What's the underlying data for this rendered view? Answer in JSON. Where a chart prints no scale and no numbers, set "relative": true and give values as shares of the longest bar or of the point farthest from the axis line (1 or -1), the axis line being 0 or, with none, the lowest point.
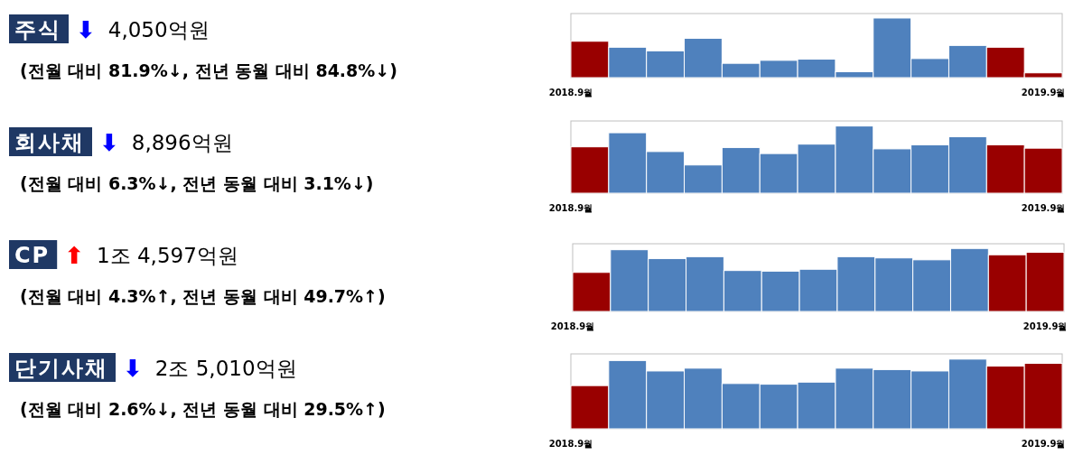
{
  "chart_data": [
    {
      "type": "other",
      "title": "주식",
      "subtitle": "4,050억원",
      "color": "#0000ff",
      "annotations": [
        "⬇",
        "(전월 대비 81.9%↓, 전년 동월 대비 84.8%↓)"
      ]
    },
    {
      "type": "bar",
      "relative": true,
      "categories": [
        "2018.9월",
        null,
        null,
        null,
        null,
        null,
        null,
        null,
        null,
        null,
        null,
        null,
        "2019.9월"
      ],
      "values": [
        0.61,
        0.51,
        0.45,
        0.66,
        0.24,
        0.29,
        0.31,
        0.1,
        1,
        0.32,
        0.54,
        0.51,
        0.08
      ],
      "colors": [
        "#990000",
        "#4f81bd",
        "#4f81bd",
        "#4f81bd",
        "#4f81bd",
        "#4f81bd",
        "#4f81bd",
        "#4f81bd",
        "#4f81bd",
        "#4f81bd",
        "#4f81bd",
        "#990000",
        "#990000"
      ]
    },
    {
      "type": "other",
      "title": "회사채",
      "subtitle": "8,896억원",
      "color": "#0000ff",
      "annotations": [
        "⬇",
        "(전월 대비 6.3%↓, 전년 동월 대비 3.1%↓)"
      ]
    },
    {
      "type": "bar",
      "relative": true,
      "categories": [
        "2018.9월",
        null,
        null,
        null,
        null,
        null,
        null,
        null,
        null,
        null,
        null,
        null,
        "2019.9월"
      ],
      "values": [
        0.69,
        0.9,
        0.62,
        0.42,
        0.68,
        0.59,
        0.73,
        1,
        0.66,
        0.72,
        0.84,
        0.72,
        0.67
      ],
      "colors": [
        "#990000",
        "#4f81bd",
        "#4f81bd",
        "#4f81bd",
        "#4f81bd",
        "#4f81bd",
        "#4f81bd",
        "#4f81bd",
        "#4f81bd",
        "#4f81bd",
        "#4f81bd",
        "#990000",
        "#990000"
      ]
    },
    {
      "type": "other",
      "title": "CP",
      "subtitle": "1조 4,597억원",
      "color": "#ff0000",
      "annotations": [
        "⬆",
        "(전월 대비 4.3%↑, 전년 동월 대비 49.7%↑)"
      ]
    },
    {
      "type": "bar",
      "relative": true,
      "categories": [
        "2018.9월",
        null,
        null,
        null,
        null,
        null,
        null,
        null,
        null,
        null,
        null,
        null,
        "2019.9월"
      ],
      "values": [
        0.62,
        0.98,
        0.84,
        0.87,
        0.65,
        0.64,
        0.67,
        0.87,
        0.85,
        0.82,
        1,
        0.9,
        0.94
      ],
      "colors": [
        "#990000",
        "#4f81bd",
        "#4f81bd",
        "#4f81bd",
        "#4f81bd",
        "#4f81bd",
        "#4f81bd",
        "#4f81bd",
        "#4f81bd",
        "#4f81bd",
        "#4f81bd",
        "#990000",
        "#990000"
      ]
    },
    {
      "type": "other",
      "title": "단기사채",
      "subtitle": "2조 5,010억원",
      "color": "#0000ff",
      "annotations": [
        "⬇",
        "(전월 대비 2.6%↓, 전년 동월 대비 29.5%↑)"
      ]
    },
    {
      "type": "bar",
      "relative": true,
      "categories": [
        "2018.9월",
        null,
        null,
        null,
        null,
        null,
        null,
        null,
        null,
        null,
        null,
        null,
        "2019.9월"
      ],
      "values": [
        0.62,
        0.98,
        0.83,
        0.87,
        0.65,
        0.64,
        0.67,
        0.87,
        0.85,
        0.83,
        1,
        0.9,
        0.94
      ],
      "colors": [
        "#990000",
        "#4f81bd",
        "#4f81bd",
        "#4f81bd",
        "#4f81bd",
        "#4f81bd",
        "#4f81bd",
        "#4f81bd",
        "#4f81bd",
        "#4f81bd",
        "#4f81bd",
        "#990000",
        "#990000"
      ]
    }
  ]
}
